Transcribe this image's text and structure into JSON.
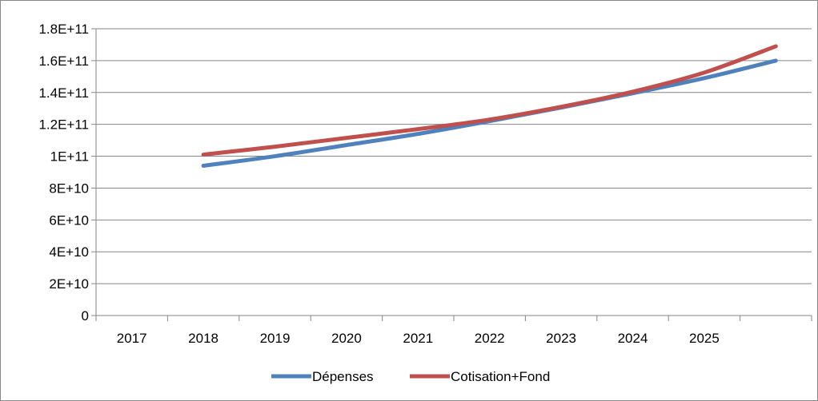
{
  "chart_data": {
    "type": "line",
    "title": "",
    "xlabel": "",
    "ylabel": "",
    "categories": [
      "2017",
      "2018",
      "2019",
      "2020",
      "2021",
      "2022",
      "2023",
      "2024",
      "2025",
      ""
    ],
    "x_tick_labels": [
      "2017",
      "2018",
      "2019",
      "2020",
      "2021",
      "2022",
      "2023",
      "2024",
      "2025"
    ],
    "y_tick_labels": [
      "0",
      "2E+10",
      "4E+10",
      "6E+10",
      "8E+10",
      "1E+11",
      "1.2E+11",
      "1.4E+11",
      "1.6E+11",
      "1.8E+11"
    ],
    "ylim": [
      0,
      180000000000
    ],
    "grid": true,
    "legend_position": "bottom",
    "series": [
      {
        "name": "Dépenses",
        "color": "#4F81BD",
        "values": [
          null,
          94000000000,
          100000000000,
          107000000000,
          114000000000,
          122000000000,
          130500000000,
          139500000000,
          149000000000,
          160000000000
        ]
      },
      {
        "name": "Cotisation+Fond",
        "color": "#C0504D",
        "values": [
          null,
          101000000000,
          106000000000,
          111500000000,
          117000000000,
          123000000000,
          131000000000,
          140500000000,
          152500000000,
          169000000000
        ]
      }
    ]
  }
}
